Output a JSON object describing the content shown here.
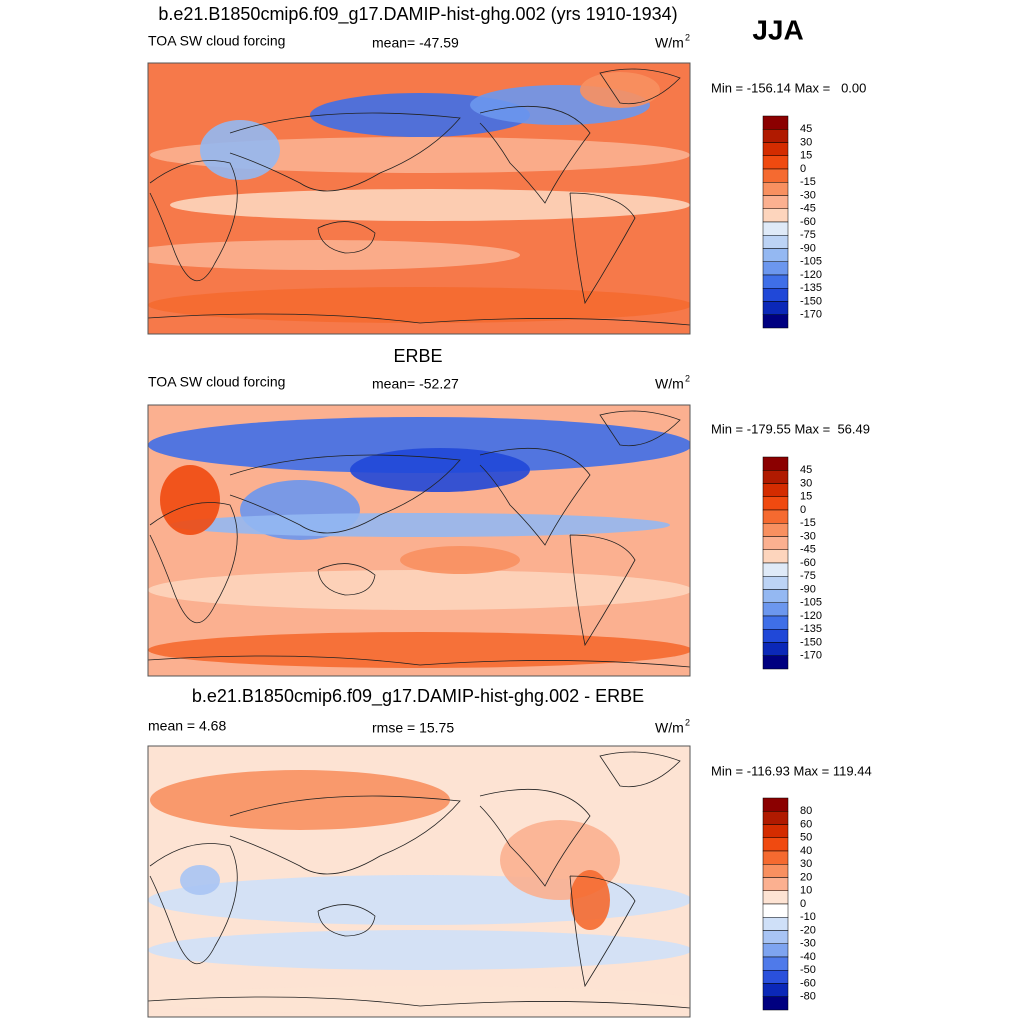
{
  "season": "JJA",
  "panels": [
    {
      "title": "b.e21.B1850cmip6.f09_g17.DAMIP-hist-ghg.002 (yrs 1910-1934)",
      "left_label": "TOA SW cloud forcing",
      "center_label": "mean= -47.59",
      "units": "W/m",
      "units_sup": "2",
      "minmax": "Min = -156.14 Max =   0.00",
      "colorbar": {
        "labels": [
          45,
          30,
          15,
          0,
          -15,
          -30,
          -45,
          -60,
          -75,
          -90,
          -105,
          -120,
          -135,
          -150,
          -170
        ],
        "colors": [
          "#8b0000",
          "#b01a00",
          "#d42c00",
          "#f04a10",
          "#f56a30",
          "#f89060",
          "#fbb090",
          "#fdd5bd",
          "#dfeaf8",
          "#bcd3f5",
          "#94b8f2",
          "#6c97ee",
          "#3f6fe8",
          "#2048d8",
          "#0b28b8",
          "#000080"
        ]
      }
    },
    {
      "title": "ERBE",
      "left_label": "TOA SW cloud forcing",
      "center_label": "mean= -52.27",
      "units": "W/m",
      "units_sup": "2",
      "minmax": "Min = -179.55 Max =  56.49",
      "colorbar": {
        "labels": [
          45,
          30,
          15,
          0,
          -15,
          -30,
          -45,
          -60,
          -75,
          -90,
          -105,
          -120,
          -135,
          -150,
          -170
        ],
        "colors": [
          "#8b0000",
          "#b01a00",
          "#d42c00",
          "#f04a10",
          "#f56a30",
          "#f89060",
          "#fbb090",
          "#fdd5bd",
          "#dfeaf8",
          "#bcd3f5",
          "#94b8f2",
          "#6c97ee",
          "#3f6fe8",
          "#2048d8",
          "#0b28b8",
          "#000080"
        ]
      }
    },
    {
      "title": "b.e21.B1850cmip6.f09_g17.DAMIP-hist-ghg.002 - ERBE",
      "left_label": "mean =   4.68",
      "center_label": "rmse =  15.75",
      "units": "W/m",
      "units_sup": "2",
      "minmax": "Min = -116.93 Max = 119.44",
      "colorbar": {
        "labels": [
          80,
          60,
          50,
          40,
          30,
          20,
          10,
          0,
          -10,
          -20,
          -30,
          -40,
          -50,
          -60,
          -80
        ],
        "colors": [
          "#8b0000",
          "#b01a00",
          "#d42c00",
          "#f04a10",
          "#f56a30",
          "#f89060",
          "#fbb090",
          "#fde3d3",
          "#ffffff",
          "#cfe0f8",
          "#a8c4f4",
          "#7ea4f0",
          "#4f7aea",
          "#2a50dc",
          "#0b28b8",
          "#000080"
        ]
      }
    }
  ]
}
